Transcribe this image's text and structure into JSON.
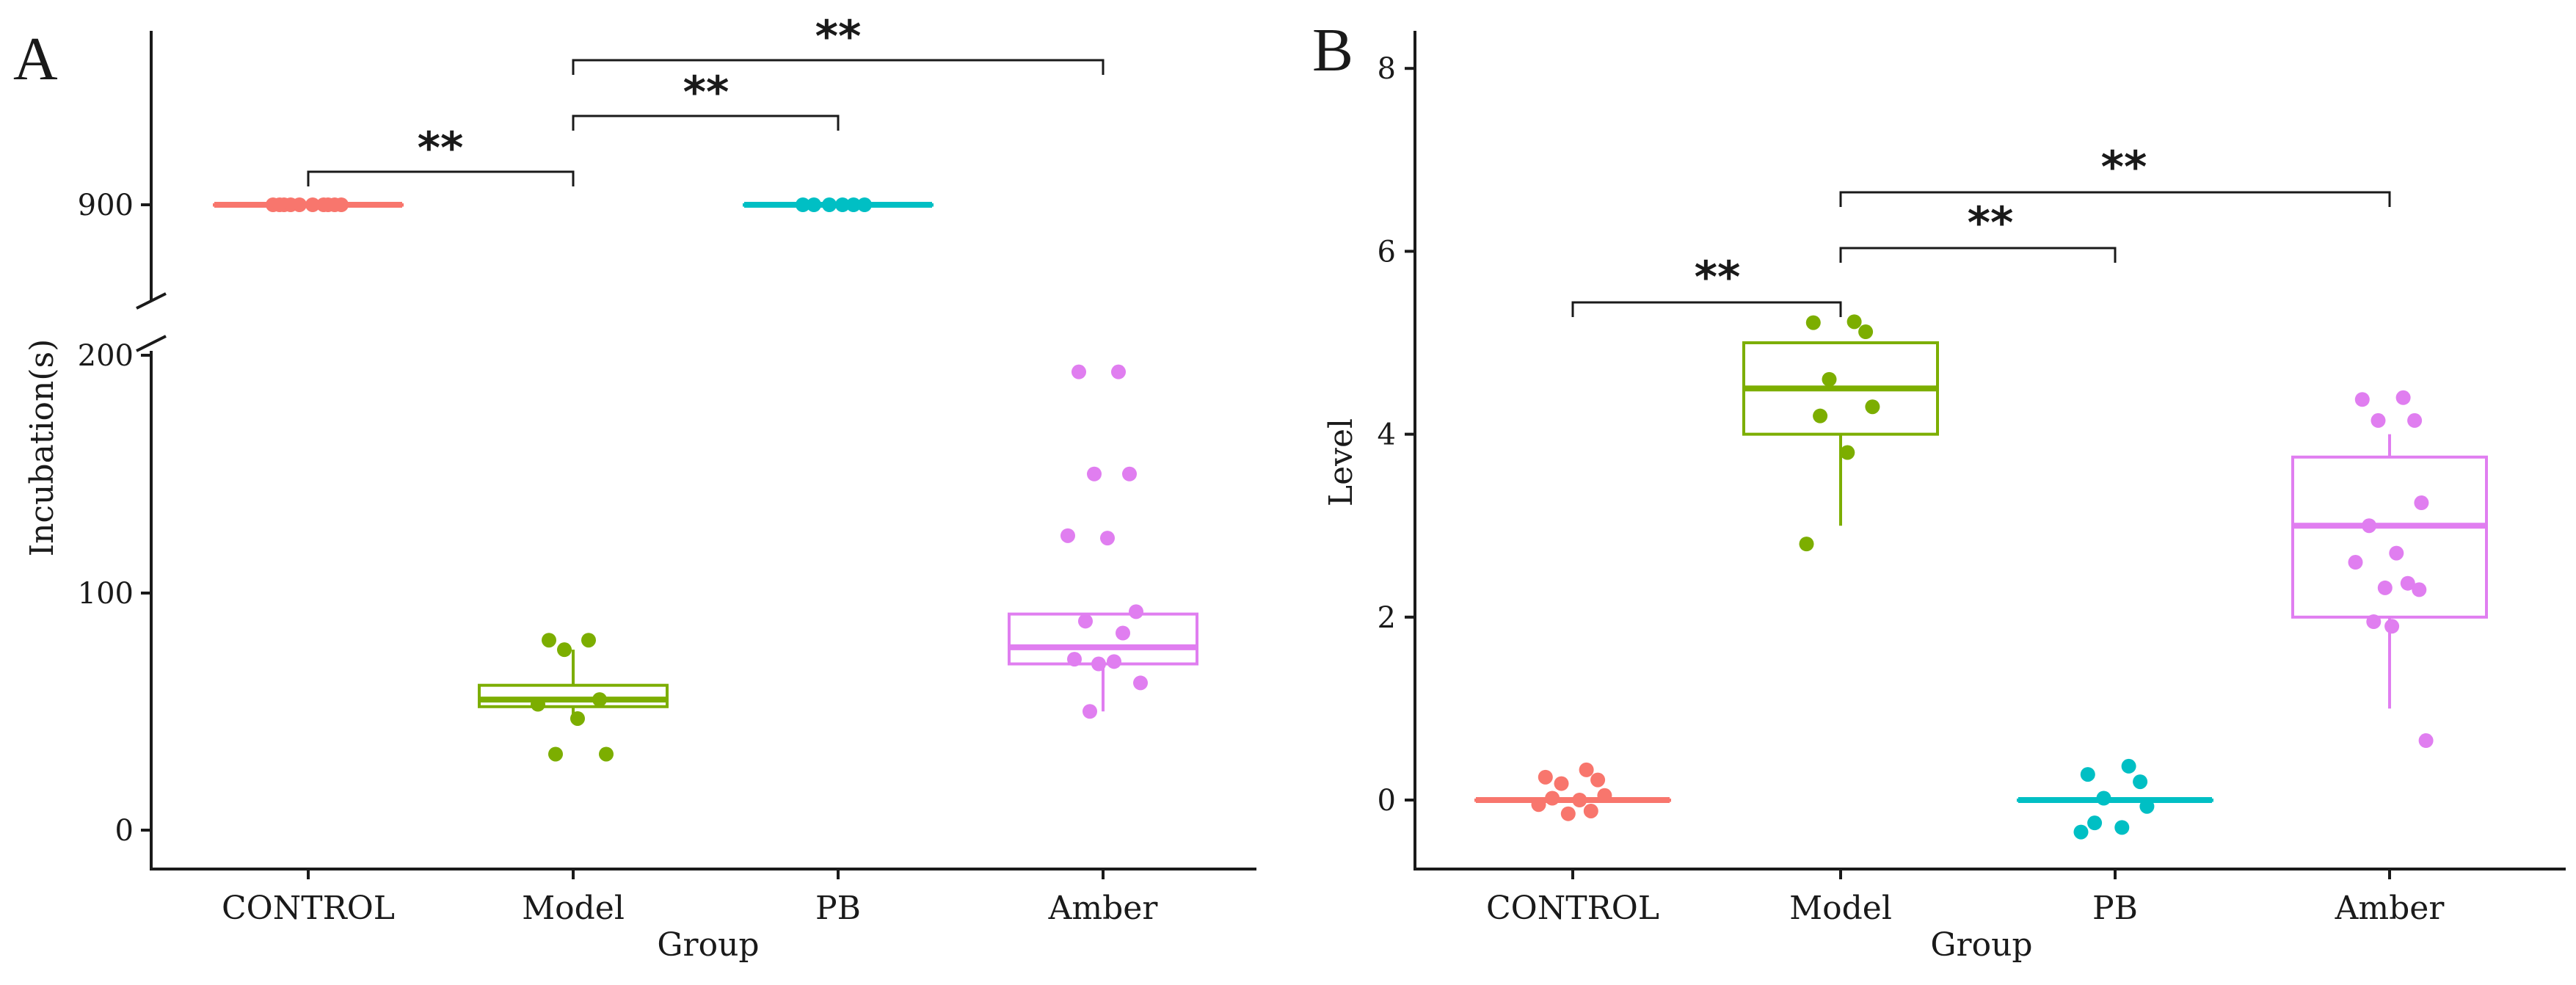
{
  "chart_data": [
    {
      "panel": "A",
      "type": "boxplot-with-jitter",
      "xlabel": "Group",
      "ylabel": "Incubation(s)",
      "categories": [
        "CONTROL",
        "Model",
        "PB",
        "Amber"
      ],
      "colors": [
        "#f8766d",
        "#7cae00",
        "#00bfc4",
        "#e07ef0"
      ],
      "y_axis": {
        "broken": true,
        "lower_segment": [
          0,
          200
        ],
        "upper_segment_value": 900,
        "tick_labels": [
          "0",
          "100",
          "200",
          "900"
        ]
      },
      "boxes": [
        {
          "group": "CONTROL",
          "min": 900,
          "q1": 900,
          "median": 900,
          "q3": 900,
          "max": 900
        },
        {
          "group": "Model",
          "min": 47,
          "q1": 52,
          "median": 55,
          "q3": 61,
          "max": 76
        },
        {
          "group": "PB",
          "min": 900,
          "q1": 900,
          "median": 900,
          "q3": 900,
          "max": 900
        },
        {
          "group": "Amber",
          "min": 50,
          "q1": 70,
          "median": 77,
          "q3": 91,
          "max": 91
        }
      ],
      "points": [
        {
          "group": "CONTROL",
          "values": [
            900,
            900,
            900,
            900,
            900,
            900,
            900,
            900,
            900,
            900
          ]
        },
        {
          "group": "Model",
          "values": [
            80,
            80,
            76,
            55,
            53,
            47,
            32,
            32
          ]
        },
        {
          "group": "PB",
          "values": [
            900,
            900,
            900,
            900,
            900,
            900
          ]
        },
        {
          "group": "Amber",
          "values": [
            193,
            193,
            150,
            150,
            124,
            123,
            92,
            88,
            83,
            72,
            71,
            70,
            62,
            50
          ]
        }
      ],
      "significance": [
        {
          "from": "CONTROL",
          "to": "Model",
          "label": "**"
        },
        {
          "from": "Model",
          "to": "PB",
          "label": "**"
        },
        {
          "from": "Model",
          "to": "Amber",
          "label": "**"
        }
      ]
    },
    {
      "panel": "B",
      "type": "boxplot-with-jitter",
      "xlabel": "Group",
      "ylabel": "Level",
      "categories": [
        "CONTROL",
        "Model",
        "PB",
        "Amber"
      ],
      "colors": [
        "#f8766d",
        "#7cae00",
        "#00bfc4",
        "#e07ef0"
      ],
      "ylim": [
        -0.8,
        8.4
      ],
      "yticks": [
        0,
        2,
        4,
        6,
        8
      ],
      "boxes": [
        {
          "group": "CONTROL",
          "min": 0,
          "q1": 0,
          "median": 0,
          "q3": 0,
          "max": 0
        },
        {
          "group": "Model",
          "min": 3,
          "q1": 4,
          "median": 4.5,
          "q3": 5,
          "max": 5
        },
        {
          "group": "PB",
          "min": 0,
          "q1": 0,
          "median": 0,
          "q3": 0,
          "max": 0
        },
        {
          "group": "Amber",
          "min": 1,
          "q1": 2,
          "median": 3,
          "q3": 3.75,
          "max": 4
        }
      ],
      "points": [
        {
          "group": "CONTROL",
          "values": [
            0.33,
            0.25,
            0.22,
            0.18,
            0.05,
            0.02,
            0.0,
            -0.05,
            -0.12,
            -0.15
          ]
        },
        {
          "group": "Model",
          "values": [
            5.23,
            5.22,
            5.12,
            4.6,
            4.3,
            4.2,
            3.8,
            2.8
          ]
        },
        {
          "group": "PB",
          "values": [
            0.37,
            0.28,
            0.2,
            0.02,
            -0.07,
            -0.25,
            -0.3,
            -0.35
          ]
        },
        {
          "group": "Amber",
          "values": [
            4.4,
            4.38,
            4.15,
            4.15,
            3.25,
            3.0,
            2.7,
            2.6,
            2.37,
            2.32,
            2.3,
            1.95,
            1.9,
            0.65
          ]
        }
      ],
      "significance": [
        {
          "from": "CONTROL",
          "to": "Model",
          "label": "**"
        },
        {
          "from": "Model",
          "to": "PB",
          "label": "**"
        },
        {
          "from": "Model",
          "to": "Amber",
          "label": "**"
        }
      ]
    }
  ]
}
